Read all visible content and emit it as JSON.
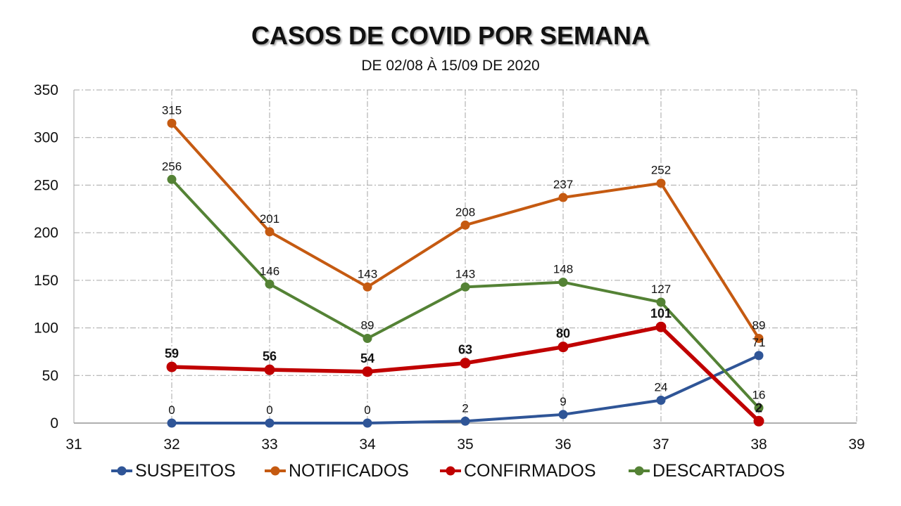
{
  "chart_data": {
    "type": "line",
    "title": "CASOS DE COVID POR SEMANA",
    "subtitle": "DE 02/08 À 15/09 DE 2020",
    "xlabel": "",
    "ylabel": "",
    "xlim": [
      31,
      39
    ],
    "ylim": [
      0,
      350
    ],
    "xticks": [
      31,
      32,
      33,
      34,
      35,
      36,
      37,
      38,
      39
    ],
    "yticks": [
      0,
      50,
      100,
      150,
      200,
      250,
      300,
      350
    ],
    "grid": true,
    "legend_position": "bottom",
    "x": [
      32,
      33,
      34,
      35,
      36,
      37,
      38
    ],
    "series": [
      {
        "name": "SUSPEITOS",
        "color": "#2f5597",
        "values": [
          0,
          0,
          0,
          2,
          9,
          24,
          71
        ],
        "bold_labels": false
      },
      {
        "name": "NOTIFICADOS",
        "color": "#c55a11",
        "values": [
          315,
          201,
          143,
          208,
          237,
          252,
          89
        ],
        "bold_labels": false
      },
      {
        "name": "CONFIRMADOS",
        "color": "#c00000",
        "values": [
          59,
          56,
          54,
          63,
          80,
          101,
          2
        ],
        "bold_labels": true
      },
      {
        "name": "DESCARTADOS",
        "color": "#548235",
        "values": [
          256,
          146,
          89,
          143,
          148,
          127,
          16
        ],
        "bold_labels": false
      }
    ]
  }
}
